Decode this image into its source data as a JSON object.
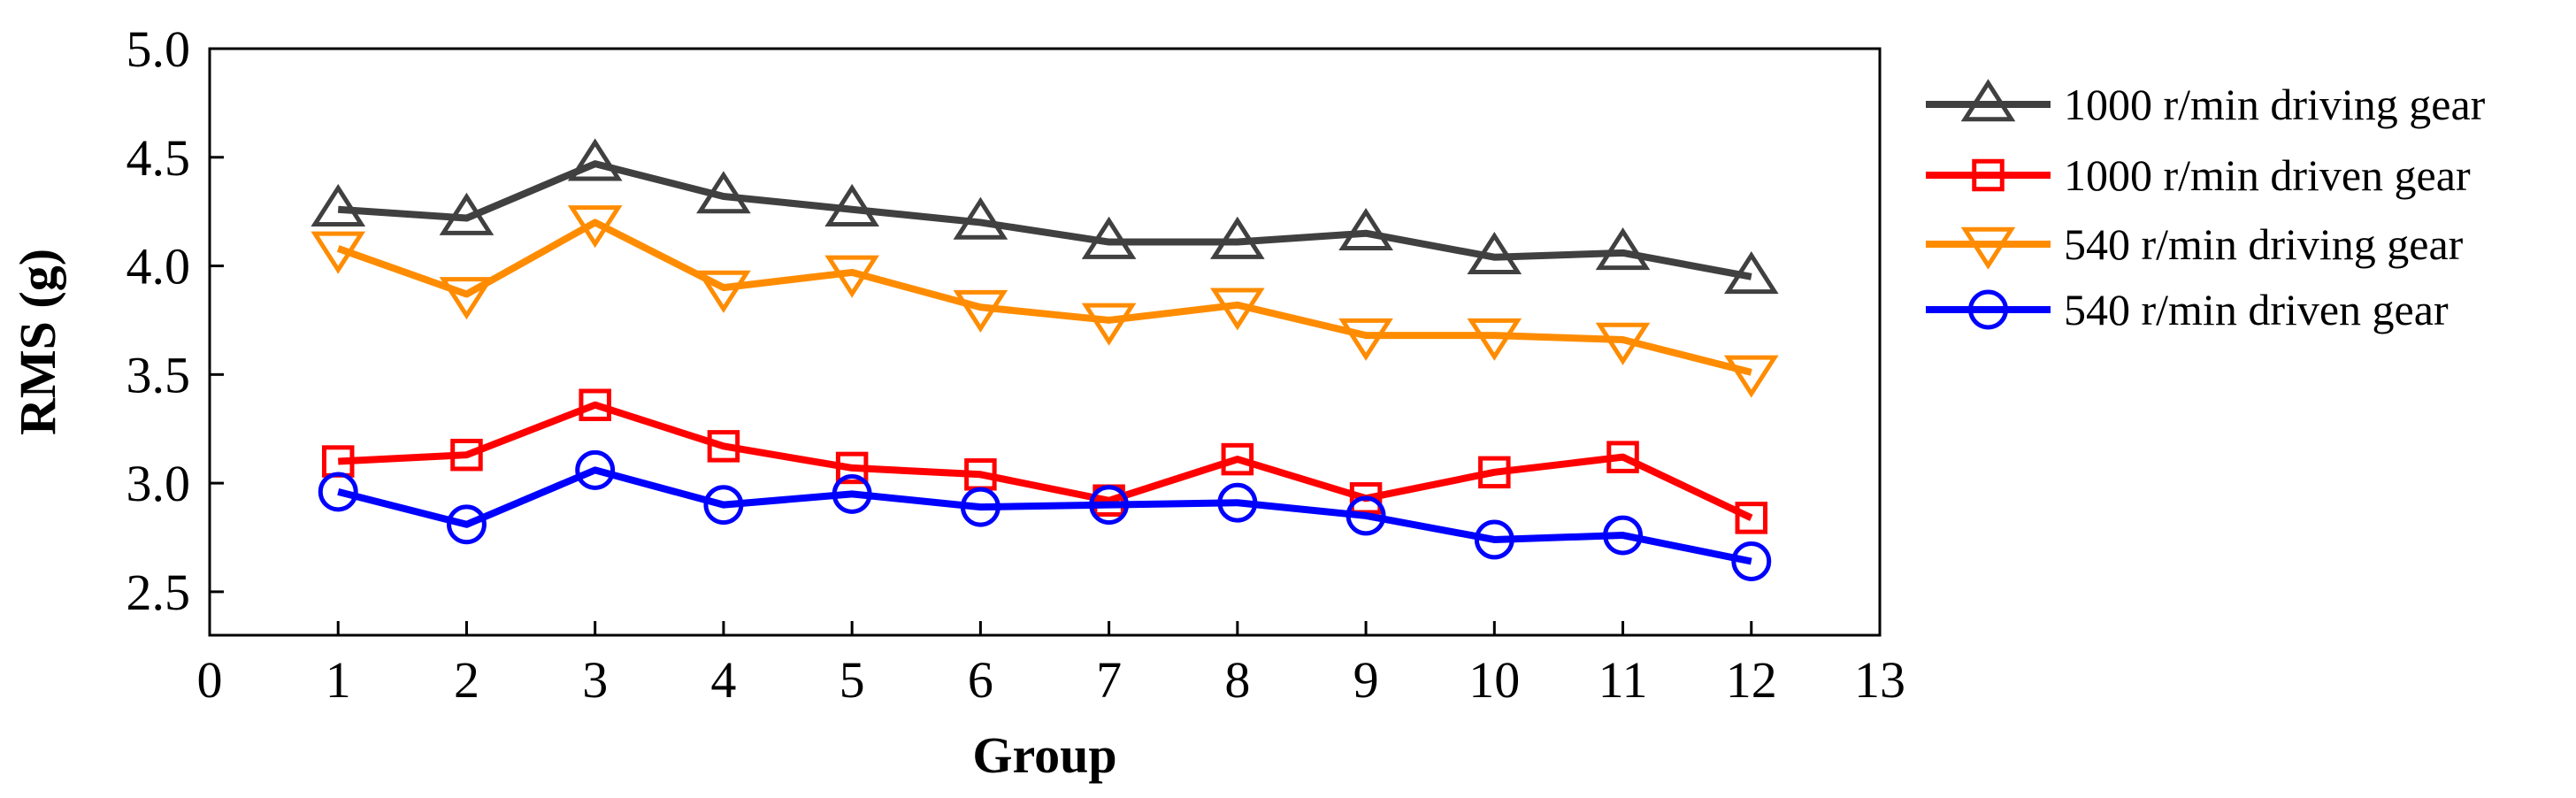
{
  "chart_data": {
    "type": "line",
    "title": "",
    "xlabel": "Group",
    "ylabel": "RMS (g)",
    "xlim": [
      0,
      13
    ],
    "ylim": [
      2.3,
      5.0
    ],
    "xticks": [
      0,
      1,
      2,
      3,
      4,
      5,
      6,
      7,
      8,
      9,
      10,
      11,
      12,
      13
    ],
    "xtick_labels": [
      "0",
      "1",
      "2",
      "3",
      "4",
      "5",
      "6",
      "7",
      "8",
      "9",
      "10",
      "11",
      "12",
      "13"
    ],
    "yticks": [
      2.5,
      3.0,
      3.5,
      4.0,
      4.5,
      5.0
    ],
    "ytick_labels": [
      "2.5",
      "3.0",
      "3.5",
      "4.0",
      "4.5",
      "5.0"
    ],
    "grid": false,
    "legend_position": "right",
    "x": [
      1,
      2,
      3,
      4,
      5,
      6,
      7,
      8,
      9,
      10,
      11,
      12
    ],
    "series": [
      {
        "name": "1000 r/min driving gear",
        "color": "#404040",
        "marker": "triangle-up",
        "values": [
          4.26,
          4.22,
          4.47,
          4.32,
          4.26,
          4.2,
          4.11,
          4.11,
          4.15,
          4.04,
          4.06,
          3.95
        ]
      },
      {
        "name": "1000 r/min driven gear",
        "color": "#ff0000",
        "marker": "square",
        "values": [
          3.1,
          3.13,
          3.36,
          3.17,
          3.07,
          3.04,
          2.92,
          3.11,
          2.93,
          3.05,
          3.12,
          2.84
        ]
      },
      {
        "name": "540 r/min driving gear",
        "color": "#ff8c00",
        "marker": "triangle-down",
        "values": [
          4.08,
          3.87,
          4.2,
          3.9,
          3.97,
          3.81,
          3.75,
          3.82,
          3.68,
          3.68,
          3.66,
          3.51
        ]
      },
      {
        "name": "540 r/min driven gear",
        "color": "#0000ff",
        "marker": "circle",
        "values": [
          2.96,
          2.81,
          3.06,
          2.9,
          2.95,
          2.89,
          2.9,
          2.91,
          2.85,
          2.74,
          2.76,
          2.64
        ]
      }
    ]
  }
}
